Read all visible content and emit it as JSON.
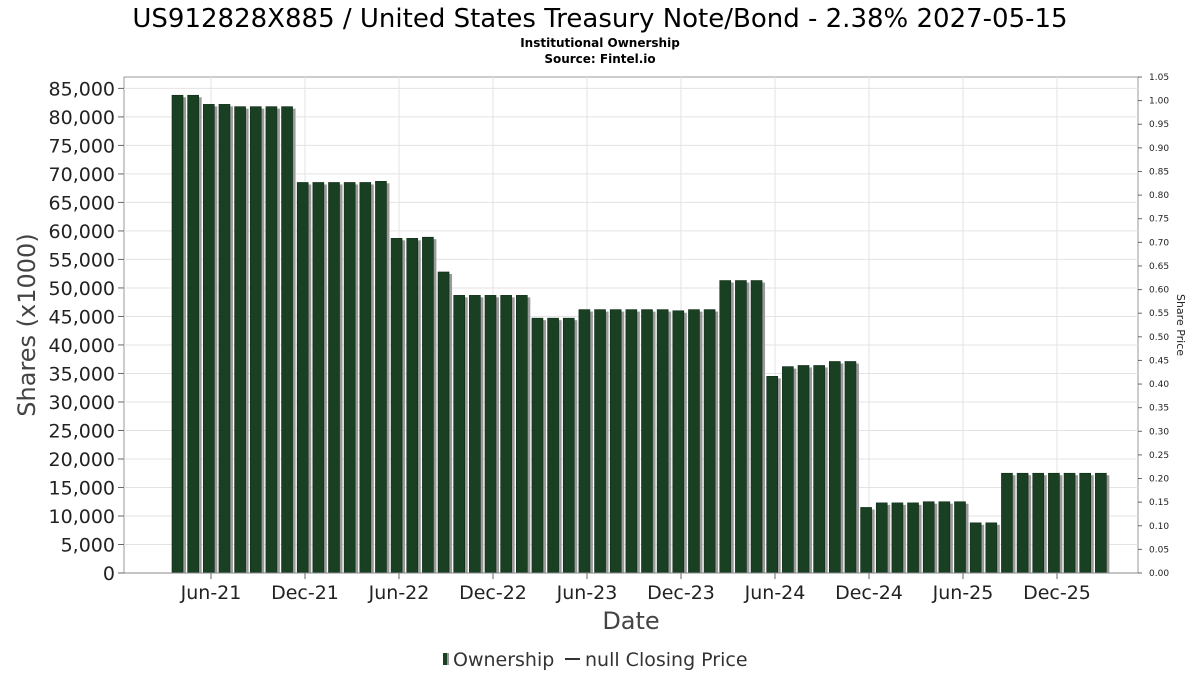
{
  "chart_data": {
    "type": "bar",
    "title": "US912828X885 / United States Treasury Note/Bond - 2.38% 2027-05-15",
    "subtitle": "Institutional Ownership",
    "source": "Source: Fintel.io",
    "xlabel": "Date",
    "ylabel": "Shares (x1000)",
    "ylabel_right": "Share Price",
    "ylim": [
      0,
      87000
    ],
    "ylim_right": [
      0,
      1.05
    ],
    "yticks": [
      0,
      5000,
      10000,
      15000,
      20000,
      25000,
      30000,
      35000,
      40000,
      45000,
      50000,
      55000,
      60000,
      65000,
      70000,
      75000,
      80000,
      85000
    ],
    "ytick_labels": [
      "0",
      "5,000",
      "10,000",
      "15,000",
      "20,000",
      "25,000",
      "30,000",
      "35,000",
      "40,000",
      "45,000",
      "50,000",
      "55,000",
      "60,000",
      "65,000",
      "70,000",
      "75,000",
      "80,000",
      "85,000"
    ],
    "yticks_right": [
      "0.00",
      "0.05",
      "0.10",
      "0.15",
      "0.20",
      "0.25",
      "0.30",
      "0.35",
      "0.40",
      "0.45",
      "0.50",
      "0.55",
      "0.60",
      "0.65",
      "0.70",
      "0.75",
      "0.80",
      "0.85",
      "0.90",
      "0.95",
      "1.00",
      "1.05"
    ],
    "xtick_labels": [
      "Jun-21",
      "Dec-21",
      "Jun-22",
      "Dec-22",
      "Jun-23",
      "Dec-23",
      "Jun-24",
      "Dec-24",
      "Jun-25",
      "Dec-25"
    ],
    "series": [
      {
        "name": "Ownership",
        "color": "#1a4023",
        "values": [
          83800,
          83800,
          82200,
          82200,
          81800,
          81800,
          81800,
          81800,
          68500,
          68500,
          68500,
          68500,
          68500,
          68700,
          58700,
          58700,
          58900,
          52800,
          48700,
          48700,
          48700,
          48700,
          48700,
          44700,
          44700,
          44700,
          46200,
          46200,
          46200,
          46200,
          46200,
          46200,
          46000,
          46200,
          46200,
          51300,
          51300,
          51300,
          34500,
          36200,
          36400,
          36400,
          37100,
          37100,
          11500,
          12300,
          12300,
          12300,
          12500,
          12500,
          12500,
          8800,
          8800,
          17500,
          17500,
          17500,
          17500,
          17500,
          17500,
          17500
        ]
      },
      {
        "name": "null Closing Price",
        "color": "#333333",
        "values": []
      }
    ]
  },
  "legend": {
    "ownership_label": "Ownership",
    "price_label": "null Closing Price"
  }
}
